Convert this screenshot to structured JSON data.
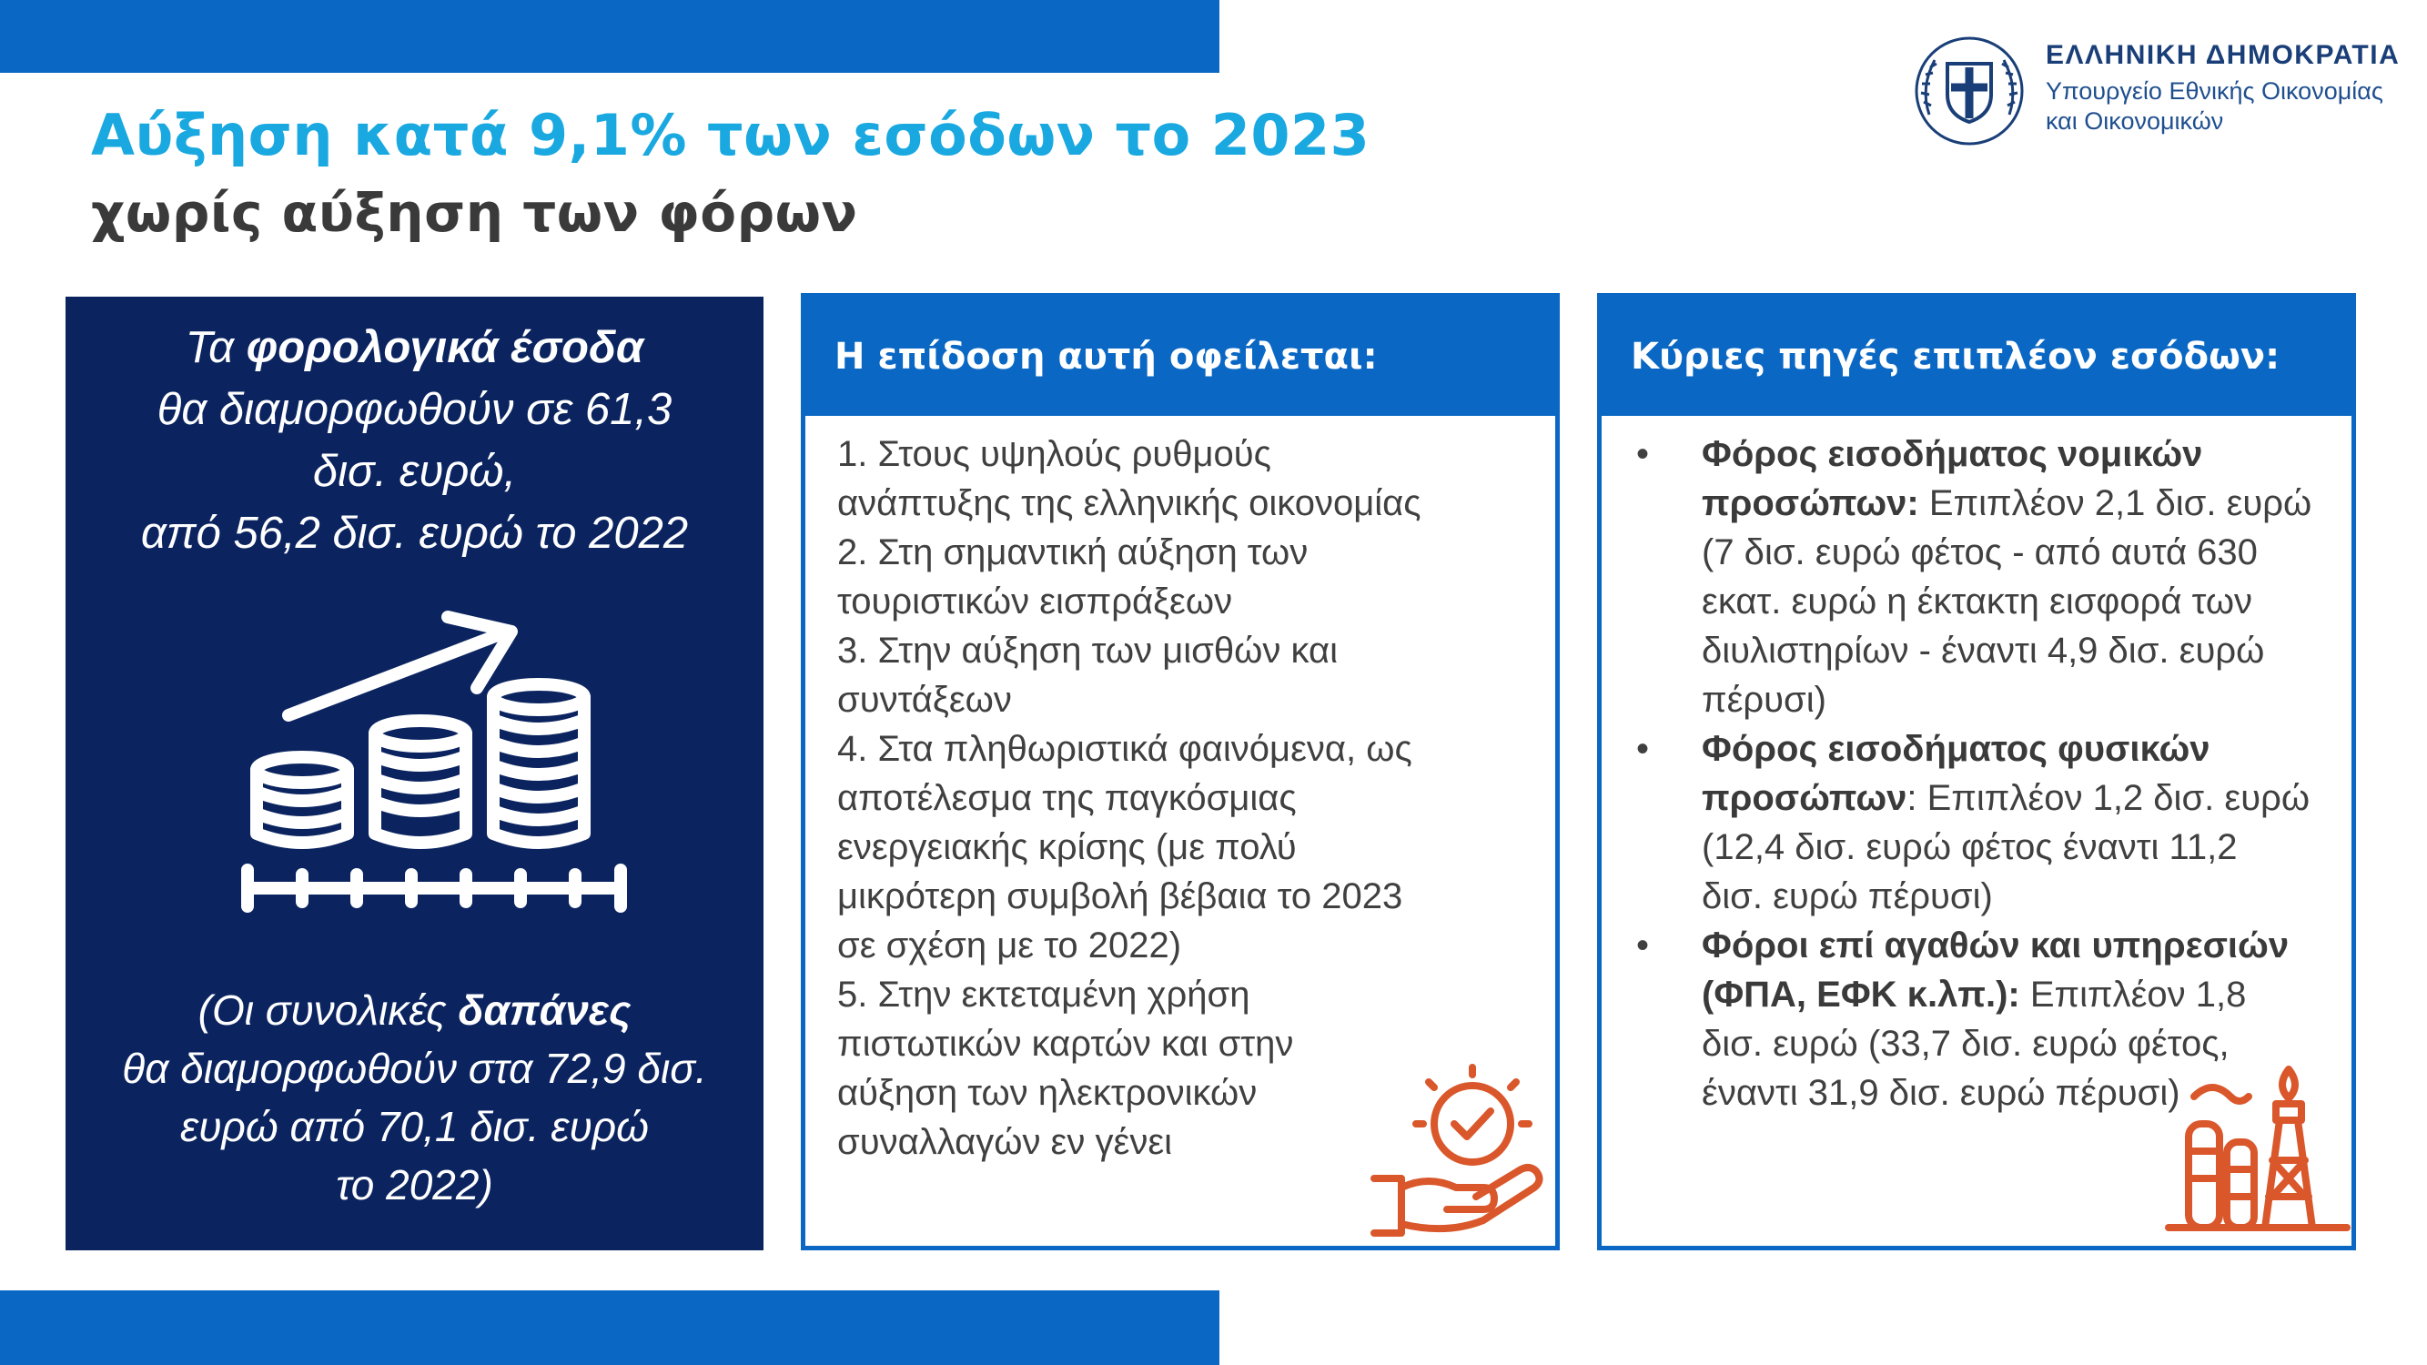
{
  "colors": {
    "accent_blue": "#0A68C4",
    "title_cyan": "#1AA8E0",
    "navy": "#0B2460",
    "icon_orange": "#D9572B"
  },
  "header": {
    "title_line1": "Αύξηση κατά 9,1% των εσόδων το 2023",
    "title_line2": "χωρίς αύξηση των φόρων"
  },
  "logo": {
    "main": "ΕΛΛΗΝΙΚΗ ΔΗΜΟΚΡΑΤΙΑ",
    "sub_line1": "Υπουργείο Εθνικής Οικονομίας",
    "sub_line2": "και Οικονομικών"
  },
  "left_panel": {
    "top_pre": "Τα ",
    "top_bold": "φορολογικά έσοδα",
    "top_line2": "θα διαμορφωθούν σε 61,3",
    "top_line3": "δισ. ευρώ,",
    "top_line4": "από 56,2 δισ. ευρώ το 2022",
    "bottom_pre": "(Οι συνολικές ",
    "bottom_bold": "δαπάνες",
    "bottom_line2": "θα διαμορφωθούν στα 72,9 δισ.",
    "bottom_line3": "ευρώ από 70,1 δισ. ευρώ",
    "bottom_line4": "το 2022)",
    "icon": "rising-coins-icon"
  },
  "middle_panel": {
    "heading": "Η επίδοση αυτή οφείλεται:",
    "items": [
      {
        "l1": "1. Στους υψηλούς ρυθμούς",
        "l2": "ανάπτυξης της ελληνικής οικονομίας"
      },
      {
        "l1": "2. Στη σημαντική αύξηση των",
        "l2": "τουριστικών εισπράξεων"
      },
      {
        "l1": "3. Στην αύξηση των μισθών και",
        "l2": "συντάξεων"
      },
      {
        "l1": "4. Στα πληθωριστικά φαινόμενα, ως",
        "l2": "αποτέλεσμα της παγκόσμιας",
        "l3": "ενεργειακής κρίσης (με πολύ",
        "l4": "μικρότερη συμβολή βέβαια το 2023",
        "l5": "σε σχέση με το 2022)"
      },
      {
        "l1": "5. Στην εκτεταμένη χρήση",
        "l2": "πιστωτικών καρτών και στην",
        "l3": "αύξηση των ηλεκτρονικών",
        "l4": "συναλλαγών εν γένει"
      }
    ],
    "icon": "hand-checkmark-icon"
  },
  "right_panel": {
    "heading": "Κύριες πηγές επιπλέον εσόδων:",
    "bullet": "•",
    "items": [
      {
        "bold1": "Φόρος εισοδήματος νομικών",
        "bold2": "προσώπων:",
        "rest2": " Επιπλέον 2,1 δισ. ευρώ",
        "l3": "(7 δισ. ευρώ φέτος - από αυτά 630",
        "l4": "εκατ. ευρώ η έκτακτη εισφορά των",
        "l5": "διυλιστηρίων - έναντι 4,9 δισ. ευρώ",
        "l6": "πέρυσι)"
      },
      {
        "bold1": "Φόρος εισοδήματος φυσικών",
        "bold2": "προσώπων",
        "rest2": ": Επιπλέον 1,2 δισ. ευρώ",
        "l3": "(12,4 δισ. ευρώ φέτος έναντι 11,2",
        "l4": "δισ. ευρώ πέρυσι)"
      },
      {
        "bold1": "Φόροι επί αγαθών και υπηρεσιών",
        "bold2": "(ΦΠΑ, ΕΦΚ κ.λπ.):",
        "rest2": " Επιπλέον 1,8",
        "l3": "δισ. ευρώ (33,7 δισ. ευρώ φέτος,",
        "l4": "έναντι 31,9 δισ. ευρώ πέρυσι)"
      }
    ],
    "icon": "refinery-icon"
  }
}
